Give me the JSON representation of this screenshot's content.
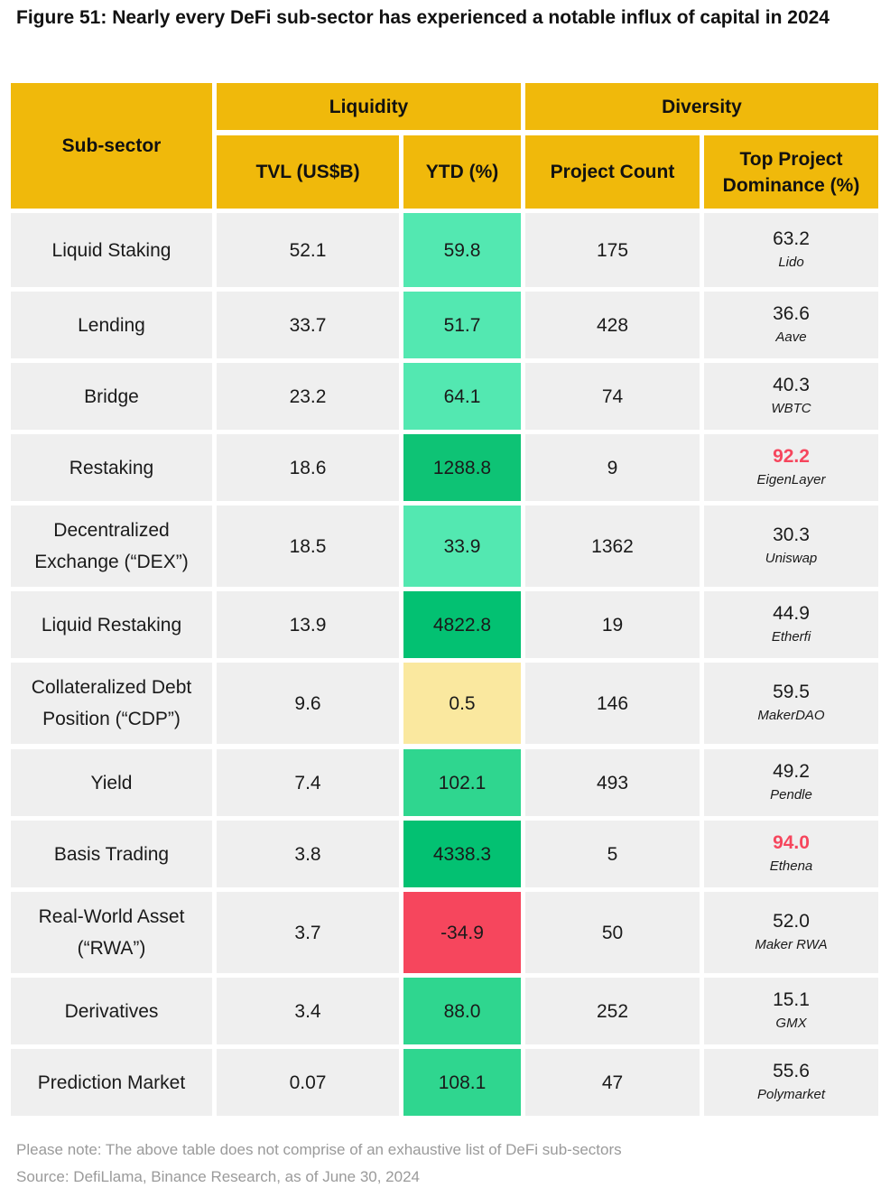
{
  "title": "Figure 51: Nearly every DeFi sub-sector has experienced a notable influx of capital in 2024",
  "header": {
    "subsector": "Sub-sector",
    "liquidity": "Liquidity",
    "diversity": "Diversity",
    "tvl": "TVL (US$B)",
    "ytd": "YTD (%)",
    "project_count": "Project Count",
    "top_project": "Top Project Dominance (%)"
  },
  "rows": [
    {
      "name": "Liquid Staking",
      "tvl": "52.1",
      "ytd": "59.8",
      "ytd_color": "#53e8b1",
      "count": "175",
      "dominance": "63.2",
      "project": "Lido",
      "highlight": false
    },
    {
      "name": "Lending",
      "tvl": "33.7",
      "ytd": "51.7",
      "ytd_color": "#53e8b1",
      "count": "428",
      "dominance": "36.6",
      "project": "Aave",
      "highlight": false
    },
    {
      "name": "Bridge",
      "tvl": "23.2",
      "ytd": "64.1",
      "ytd_color": "#53e8b1",
      "count": "74",
      "dominance": "40.3",
      "project": "WBTC",
      "highlight": false
    },
    {
      "name": "Restaking",
      "tvl": "18.6",
      "ytd": "1288.8",
      "ytd_color": "#0ec375",
      "count": "9",
      "dominance": "92.2",
      "project": "EigenLayer",
      "highlight": true
    },
    {
      "name": "Decentralized Exchange (“DEX”)",
      "tvl": "18.5",
      "ytd": "33.9",
      "ytd_color": "#53e8b1",
      "count": "1362",
      "dominance": "30.3",
      "project": "Uniswap",
      "highlight": false
    },
    {
      "name": "Liquid Restaking",
      "tvl": "13.9",
      "ytd": "4822.8",
      "ytd_color": "#03c172",
      "count": "19",
      "dominance": "44.9",
      "project": "Etherfi",
      "highlight": false
    },
    {
      "name": "Collateralized Debt Position (“CDP”)",
      "tvl": "9.6",
      "ytd": "0.5",
      "ytd_color": "#fae89f",
      "count": "146",
      "dominance": "59.5",
      "project": "MakerDAO",
      "highlight": false
    },
    {
      "name": "Yield",
      "tvl": "7.4",
      "ytd": "102.1",
      "ytd_color": "#2fd68f",
      "count": "493",
      "dominance": "49.2",
      "project": "Pendle",
      "highlight": false
    },
    {
      "name": "Basis Trading",
      "tvl": "3.8",
      "ytd": "4338.3",
      "ytd_color": "#03c172",
      "count": "5",
      "dominance": "94.0",
      "project": "Ethena",
      "highlight": true
    },
    {
      "name": "Real-World Asset (“RWA”)",
      "tvl": "3.7",
      "ytd": "-34.9",
      "ytd_color": "#f6465d",
      "count": "50",
      "dominance": "52.0",
      "project": "Maker RWA",
      "highlight": false
    },
    {
      "name": "Derivatives",
      "tvl": "3.4",
      "ytd": "88.0",
      "ytd_color": "#2fd68f",
      "count": "252",
      "dominance": "15.1",
      "project": "GMX",
      "highlight": false
    },
    {
      "name": "Prediction Market",
      "tvl": "0.07",
      "ytd": "108.1",
      "ytd_color": "#2fd68f",
      "count": "47",
      "dominance": "55.6",
      "project": "Polymarket",
      "highlight": false
    }
  ],
  "footer": {
    "note": "Please note: The above table does not comprise of an exhaustive list of DeFi sub-sectors",
    "source": "Source: DefiLlama, Binance Research, as of June 30, 2024"
  }
}
